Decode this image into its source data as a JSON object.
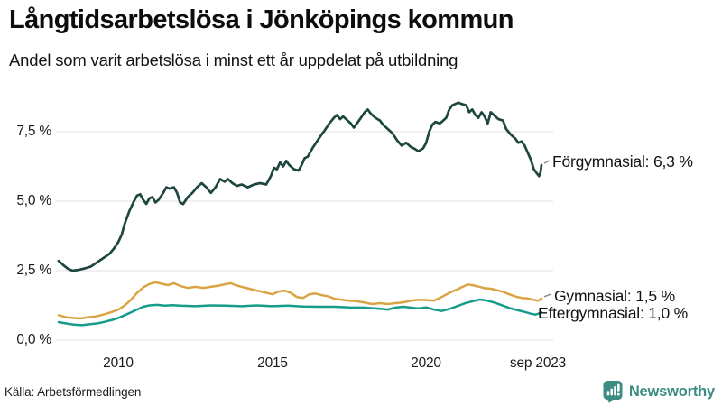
{
  "header": {
    "title": "Långtidsarbetslösa i Jönköpings kommun",
    "subtitle": "Andel som varit arbetslösa i minst ett år uppdelat på utbildning"
  },
  "source": {
    "label": "Källa: Arbetsförmedlingen"
  },
  "branding": {
    "name": "Newsworthy",
    "color": "#3b8c82",
    "icon": "bar-chart-speech-bubble-icon"
  },
  "chart_data": {
    "type": "line",
    "title": "Långtidsarbetslösa i Jönköpings kommun",
    "subtitle": "Andel som varit arbetslösa i minst ett år uppdelat på utbildning",
    "grid": "horizontal",
    "legend_position": "end-of-line-labels",
    "x_axis": {
      "range": [
        2008.05,
        2023.75
      ],
      "ticks": [
        {
          "label": "2010",
          "year": 2010
        },
        {
          "label": "2015",
          "year": 2015
        },
        {
          "label": "2020",
          "year": 2020
        },
        {
          "label": "sep 2023",
          "year": 2023.62
        }
      ]
    },
    "y_axis": {
      "unit": "%",
      "range": [
        0,
        8.75
      ],
      "values": [
        0,
        2.5,
        5,
        7.5
      ],
      "labels": [
        "0,0 %",
        "2,5 %",
        "5,0 %",
        "7,5 %"
      ]
    },
    "series": [
      {
        "name": "Förgymnasial",
        "end_label": "Förgymnasial: 6,3 %",
        "end_value": "6,3 %",
        "color": "#1e473f",
        "points": [
          [
            2008.05,
            2.85
          ],
          [
            2008.2,
            2.7
          ],
          [
            2008.35,
            2.57
          ],
          [
            2008.5,
            2.5
          ],
          [
            2008.7,
            2.53
          ],
          [
            2008.9,
            2.58
          ],
          [
            2009.1,
            2.65
          ],
          [
            2009.3,
            2.8
          ],
          [
            2009.5,
            2.95
          ],
          [
            2009.7,
            3.1
          ],
          [
            2009.85,
            3.3
          ],
          [
            2010.0,
            3.55
          ],
          [
            2010.1,
            3.8
          ],
          [
            2010.2,
            4.2
          ],
          [
            2010.35,
            4.65
          ],
          [
            2010.5,
            5.0
          ],
          [
            2010.6,
            5.2
          ],
          [
            2010.7,
            5.25
          ],
          [
            2010.8,
            5.05
          ],
          [
            2010.9,
            4.9
          ],
          [
            2011.0,
            5.1
          ],
          [
            2011.1,
            5.15
          ],
          [
            2011.2,
            4.95
          ],
          [
            2011.3,
            5.05
          ],
          [
            2011.45,
            5.3
          ],
          [
            2011.55,
            5.5
          ],
          [
            2011.65,
            5.45
          ],
          [
            2011.8,
            5.5
          ],
          [
            2011.9,
            5.3
          ],
          [
            2012.0,
            4.95
          ],
          [
            2012.1,
            4.9
          ],
          [
            2012.25,
            5.15
          ],
          [
            2012.4,
            5.3
          ],
          [
            2012.55,
            5.5
          ],
          [
            2012.7,
            5.65
          ],
          [
            2012.85,
            5.5
          ],
          [
            2013.0,
            5.3
          ],
          [
            2013.15,
            5.5
          ],
          [
            2013.3,
            5.8
          ],
          [
            2013.45,
            5.7
          ],
          [
            2013.55,
            5.8
          ],
          [
            2013.7,
            5.65
          ],
          [
            2013.85,
            5.55
          ],
          [
            2014.0,
            5.6
          ],
          [
            2014.2,
            5.5
          ],
          [
            2014.4,
            5.6
          ],
          [
            2014.6,
            5.65
          ],
          [
            2014.8,
            5.6
          ],
          [
            2014.95,
            5.9
          ],
          [
            2015.05,
            6.2
          ],
          [
            2015.15,
            6.15
          ],
          [
            2015.25,
            6.4
          ],
          [
            2015.35,
            6.25
          ],
          [
            2015.45,
            6.45
          ],
          [
            2015.55,
            6.3
          ],
          [
            2015.7,
            6.15
          ],
          [
            2015.85,
            6.1
          ],
          [
            2015.95,
            6.3
          ],
          [
            2016.05,
            6.55
          ],
          [
            2016.15,
            6.6
          ],
          [
            2016.3,
            6.9
          ],
          [
            2016.45,
            7.15
          ],
          [
            2016.6,
            7.4
          ],
          [
            2016.7,
            7.55
          ],
          [
            2016.85,
            7.8
          ],
          [
            2017.0,
            8.0
          ],
          [
            2017.1,
            8.1
          ],
          [
            2017.2,
            7.95
          ],
          [
            2017.3,
            8.05
          ],
          [
            2017.45,
            7.9
          ],
          [
            2017.55,
            7.8
          ],
          [
            2017.65,
            7.65
          ],
          [
            2017.75,
            7.8
          ],
          [
            2017.85,
            7.95
          ],
          [
            2018.0,
            8.2
          ],
          [
            2018.1,
            8.3
          ],
          [
            2018.2,
            8.15
          ],
          [
            2018.35,
            8.0
          ],
          [
            2018.5,
            7.9
          ],
          [
            2018.6,
            7.75
          ],
          [
            2018.75,
            7.6
          ],
          [
            2018.9,
            7.45
          ],
          [
            2019.05,
            7.2
          ],
          [
            2019.2,
            7.0
          ],
          [
            2019.35,
            7.1
          ],
          [
            2019.5,
            6.95
          ],
          [
            2019.6,
            6.9
          ],
          [
            2019.75,
            6.8
          ],
          [
            2019.9,
            6.9
          ],
          [
            2020.0,
            7.1
          ],
          [
            2020.1,
            7.5
          ],
          [
            2020.2,
            7.75
          ],
          [
            2020.3,
            7.85
          ],
          [
            2020.45,
            7.8
          ],
          [
            2020.55,
            7.9
          ],
          [
            2020.65,
            8.0
          ],
          [
            2020.75,
            8.3
          ],
          [
            2020.85,
            8.45
          ],
          [
            2020.95,
            8.5
          ],
          [
            2021.05,
            8.55
          ],
          [
            2021.15,
            8.5
          ],
          [
            2021.3,
            8.45
          ],
          [
            2021.4,
            8.2
          ],
          [
            2021.5,
            8.3
          ],
          [
            2021.6,
            8.1
          ],
          [
            2021.7,
            8.0
          ],
          [
            2021.8,
            8.2
          ],
          [
            2021.9,
            8.05
          ],
          [
            2022.0,
            7.8
          ],
          [
            2022.1,
            8.2
          ],
          [
            2022.2,
            8.1
          ],
          [
            2022.35,
            7.95
          ],
          [
            2022.5,
            7.9
          ],
          [
            2022.6,
            7.6
          ],
          [
            2022.75,
            7.4
          ],
          [
            2022.9,
            7.25
          ],
          [
            2023.0,
            7.1
          ],
          [
            2023.1,
            7.15
          ],
          [
            2023.2,
            7.0
          ],
          [
            2023.3,
            6.75
          ],
          [
            2023.4,
            6.5
          ],
          [
            2023.5,
            6.15
          ],
          [
            2023.6,
            6.0
          ],
          [
            2023.67,
            5.9
          ],
          [
            2023.72,
            6.05
          ],
          [
            2023.75,
            6.3
          ]
        ]
      },
      {
        "name": "Gymnasial",
        "end_label": "Gymnasial: 1,5 %",
        "end_value": "1,5 %",
        "color": "#d9a544",
        "points": [
          [
            2008.05,
            0.9
          ],
          [
            2008.3,
            0.82
          ],
          [
            2008.5,
            0.8
          ],
          [
            2008.75,
            0.78
          ],
          [
            2009.0,
            0.82
          ],
          [
            2009.25,
            0.85
          ],
          [
            2009.5,
            0.92
          ],
          [
            2009.75,
            1.0
          ],
          [
            2010.0,
            1.1
          ],
          [
            2010.2,
            1.25
          ],
          [
            2010.4,
            1.45
          ],
          [
            2010.6,
            1.7
          ],
          [
            2010.8,
            1.9
          ],
          [
            2011.0,
            2.02
          ],
          [
            2011.2,
            2.08
          ],
          [
            2011.4,
            2.03
          ],
          [
            2011.6,
            1.98
          ],
          [
            2011.8,
            2.05
          ],
          [
            2012.0,
            1.95
          ],
          [
            2012.25,
            1.88
          ],
          [
            2012.5,
            1.92
          ],
          [
            2012.75,
            1.88
          ],
          [
            2013.0,
            1.92
          ],
          [
            2013.25,
            1.96
          ],
          [
            2013.5,
            2.02
          ],
          [
            2013.65,
            2.05
          ],
          [
            2013.8,
            1.98
          ],
          [
            2014.0,
            1.92
          ],
          [
            2014.25,
            1.85
          ],
          [
            2014.5,
            1.78
          ],
          [
            2014.75,
            1.72
          ],
          [
            2015.0,
            1.65
          ],
          [
            2015.2,
            1.75
          ],
          [
            2015.4,
            1.78
          ],
          [
            2015.6,
            1.7
          ],
          [
            2015.8,
            1.55
          ],
          [
            2016.0,
            1.52
          ],
          [
            2016.2,
            1.65
          ],
          [
            2016.4,
            1.68
          ],
          [
            2016.6,
            1.62
          ],
          [
            2016.8,
            1.58
          ],
          [
            2017.0,
            1.5
          ],
          [
            2017.25,
            1.45
          ],
          [
            2017.5,
            1.42
          ],
          [
            2017.75,
            1.4
          ],
          [
            2018.0,
            1.35
          ],
          [
            2018.25,
            1.3
          ],
          [
            2018.5,
            1.33
          ],
          [
            2018.75,
            1.3
          ],
          [
            2019.0,
            1.33
          ],
          [
            2019.25,
            1.36
          ],
          [
            2019.5,
            1.42
          ],
          [
            2019.75,
            1.45
          ],
          [
            2020.0,
            1.44
          ],
          [
            2020.25,
            1.42
          ],
          [
            2020.5,
            1.55
          ],
          [
            2020.75,
            1.7
          ],
          [
            2021.0,
            1.82
          ],
          [
            2021.2,
            1.93
          ],
          [
            2021.35,
            2.0
          ],
          [
            2021.5,
            1.98
          ],
          [
            2021.7,
            1.93
          ],
          [
            2021.9,
            1.87
          ],
          [
            2022.1,
            1.85
          ],
          [
            2022.3,
            1.8
          ],
          [
            2022.5,
            1.74
          ],
          [
            2022.7,
            1.65
          ],
          [
            2022.9,
            1.57
          ],
          [
            2023.1,
            1.52
          ],
          [
            2023.3,
            1.5
          ],
          [
            2023.5,
            1.45
          ],
          [
            2023.65,
            1.42
          ],
          [
            2023.75,
            1.5
          ]
        ]
      },
      {
        "name": "Eftergymnasial",
        "end_label": "Eftergymnasial: 1,0 %",
        "end_value": "1,0 %",
        "color": "#169c8a",
        "points": [
          [
            2008.05,
            0.65
          ],
          [
            2008.3,
            0.6
          ],
          [
            2008.55,
            0.56
          ],
          [
            2008.8,
            0.54
          ],
          [
            2009.05,
            0.57
          ],
          [
            2009.3,
            0.6
          ],
          [
            2009.55,
            0.66
          ],
          [
            2009.8,
            0.73
          ],
          [
            2010.0,
            0.8
          ],
          [
            2010.2,
            0.9
          ],
          [
            2010.4,
            1.0
          ],
          [
            2010.6,
            1.1
          ],
          [
            2010.8,
            1.2
          ],
          [
            2011.0,
            1.25
          ],
          [
            2011.25,
            1.27
          ],
          [
            2011.5,
            1.24
          ],
          [
            2011.75,
            1.26
          ],
          [
            2012.0,
            1.24
          ],
          [
            2012.5,
            1.22
          ],
          [
            2013.0,
            1.25
          ],
          [
            2013.5,
            1.24
          ],
          [
            2014.0,
            1.22
          ],
          [
            2014.5,
            1.25
          ],
          [
            2015.0,
            1.22
          ],
          [
            2015.5,
            1.24
          ],
          [
            2016.0,
            1.21
          ],
          [
            2016.5,
            1.2
          ],
          [
            2017.0,
            1.2
          ],
          [
            2017.5,
            1.18
          ],
          [
            2018.0,
            1.17
          ],
          [
            2018.5,
            1.13
          ],
          [
            2018.75,
            1.1
          ],
          [
            2019.0,
            1.17
          ],
          [
            2019.25,
            1.2
          ],
          [
            2019.5,
            1.17
          ],
          [
            2019.75,
            1.14
          ],
          [
            2020.0,
            1.18
          ],
          [
            2020.25,
            1.1
          ],
          [
            2020.5,
            1.05
          ],
          [
            2020.75,
            1.12
          ],
          [
            2021.0,
            1.22
          ],
          [
            2021.25,
            1.32
          ],
          [
            2021.5,
            1.4
          ],
          [
            2021.75,
            1.46
          ],
          [
            2022.0,
            1.42
          ],
          [
            2022.25,
            1.34
          ],
          [
            2022.5,
            1.24
          ],
          [
            2022.75,
            1.14
          ],
          [
            2023.0,
            1.07
          ],
          [
            2023.25,
            1.0
          ],
          [
            2023.4,
            0.95
          ],
          [
            2023.55,
            0.92
          ],
          [
            2023.65,
            0.95
          ],
          [
            2023.75,
            1.0
          ]
        ]
      }
    ]
  }
}
